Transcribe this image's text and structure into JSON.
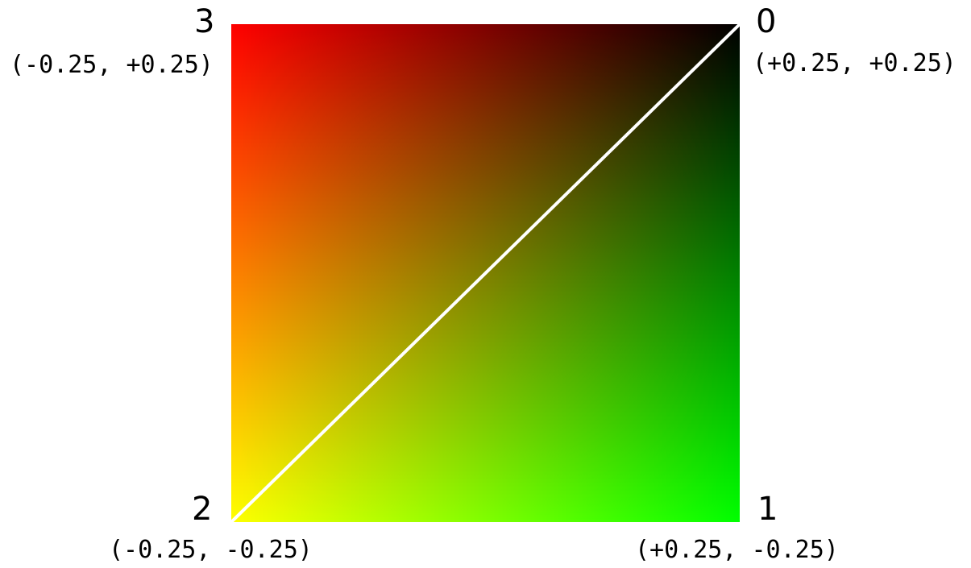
{
  "vertices": [
    {
      "index": "0",
      "coord": "(+0.25, +0.25)",
      "color": "#000000"
    },
    {
      "index": "1",
      "coord": "(+0.25, -0.25)",
      "color": "#00ff00"
    },
    {
      "index": "2",
      "coord": "(-0.25, -0.25)",
      "color": "#ffff00"
    },
    {
      "index": "3",
      "coord": "(-0.25, +0.25)",
      "color": "#ff0000"
    }
  ],
  "diagonal_color": "#ffffff"
}
